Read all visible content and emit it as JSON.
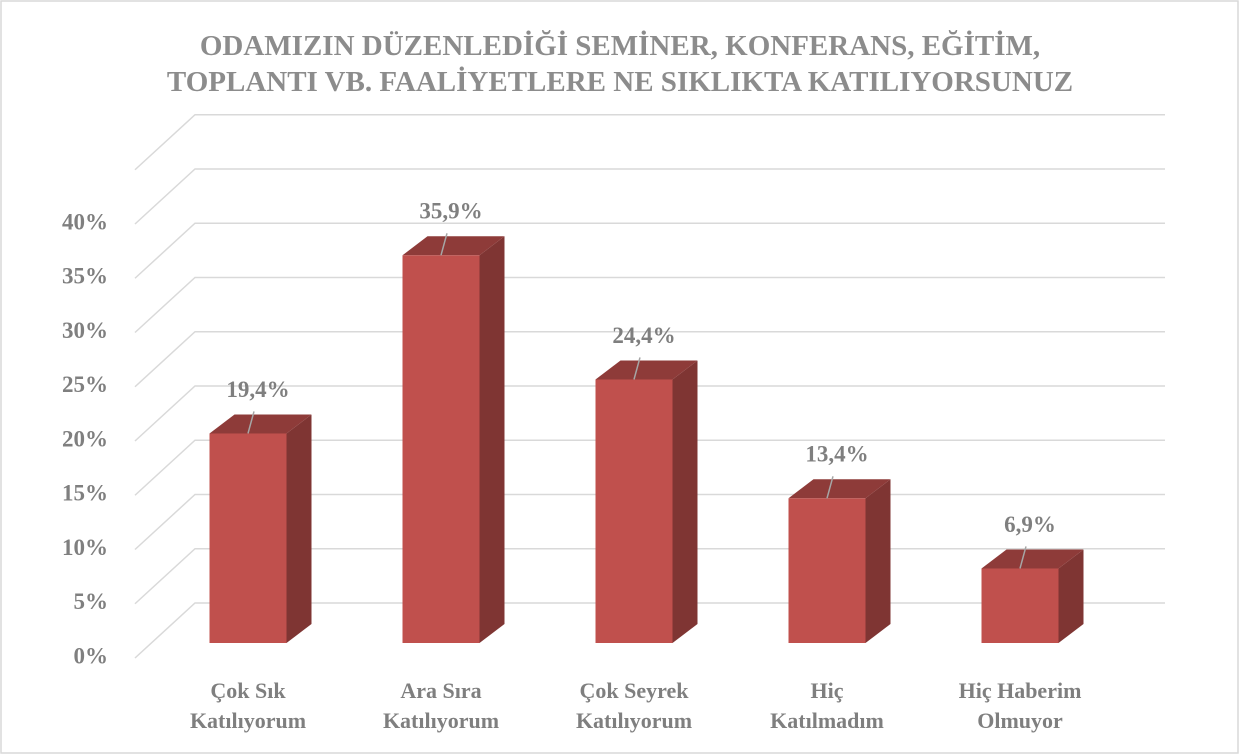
{
  "chart_data": {
    "type": "bar3d",
    "title": "ODAMIZIN DÜZENLEDİĞİ SEMİNER, KONFERANS, EĞİTİM, TOPLANTI VB. FAALİYETLERE NE SIKLIKTA KATILIYORSUNUZ",
    "categories": [
      "Çok Sık Katılıyorum",
      "Ara Sıra Katılıyorum",
      "Çok Seyrek Katılıyorum",
      "Hiç Katılmadım",
      "Hiç Haberim Olmuyor"
    ],
    "values": [
      19.4,
      35.9,
      24.4,
      13.4,
      6.9
    ],
    "value_labels": [
      "19,4%",
      "35,9%",
      "24,4%",
      "13,4%",
      "6,9%"
    ],
    "color": "#c0504d",
    "ylim": [
      0,
      45
    ],
    "yticks": [
      {
        "value": 0,
        "label": "0%"
      },
      {
        "value": 5,
        "label": "5%"
      },
      {
        "value": 10,
        "label": "10%"
      },
      {
        "value": 15,
        "label": "15%"
      },
      {
        "value": 20,
        "label": "20%"
      },
      {
        "value": 25,
        "label": "25%"
      },
      {
        "value": 30,
        "label": "30%"
      },
      {
        "value": 35,
        "label": "35%"
      },
      {
        "value": 40,
        "label": "40%"
      }
    ],
    "grid": true
  }
}
